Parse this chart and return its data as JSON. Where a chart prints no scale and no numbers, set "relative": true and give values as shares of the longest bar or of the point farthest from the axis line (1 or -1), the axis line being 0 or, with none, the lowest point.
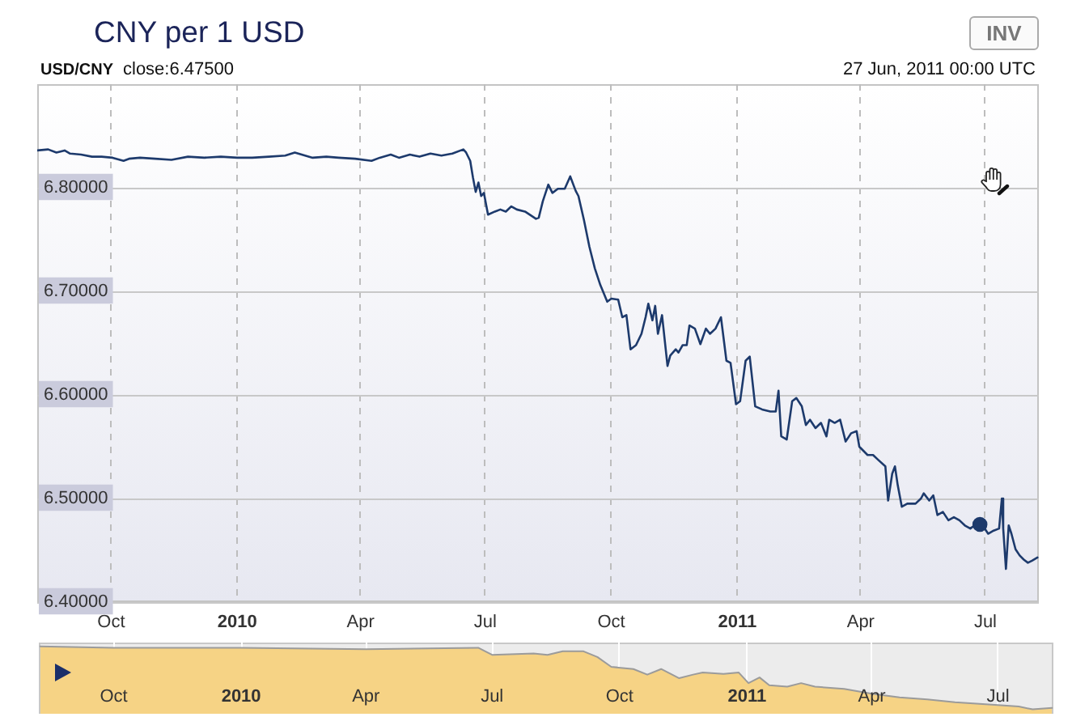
{
  "chart_data": [
    {
      "type": "line",
      "title": "CNY per 1 USD",
      "subtitle": "USD/CNY",
      "annotations": [
        "close:6.47500",
        "27 Jun, 2011 00:00 UTC",
        "INV"
      ],
      "xlim": [
        "2009-08-08",
        "2011-08-09"
      ],
      "xticks": [
        {
          "value": "2009-10-01",
          "label": "Oct"
        },
        {
          "value": "2010-01-01",
          "label": "2010"
        },
        {
          "value": "2010-04-01",
          "label": "Apr"
        },
        {
          "value": "2010-07-01",
          "label": "Jul"
        },
        {
          "value": "2010-10-01",
          "label": "Oct"
        },
        {
          "value": "2011-01-01",
          "label": "2011"
        },
        {
          "value": "2011-04-01",
          "label": "Apr"
        },
        {
          "value": "2011-07-01",
          "label": "Jul"
        }
      ],
      "ylim": [
        6.4,
        6.9
      ],
      "yticks": [
        {
          "value": 6.4,
          "label": "6.40000"
        },
        {
          "value": 6.5,
          "label": "6.50000"
        },
        {
          "value": 6.6,
          "label": "6.60000"
        },
        {
          "value": 6.7,
          "label": "6.70000"
        },
        {
          "value": 6.8,
          "label": "6.80000"
        }
      ],
      "grid": true,
      "series": [
        {
          "type": "line",
          "color": "#1d3a6c",
          "marker": "none",
          "x": [
            "2009-08-08",
            "2009-08-16",
            "2009-08-22",
            "2009-08-28",
            "2009-09-01",
            "2009-09-09",
            "2009-09-17",
            "2009-09-24",
            "2009-10-02",
            "2009-10-10",
            "2009-10-14",
            "2009-10-22",
            "2009-11-02",
            "2009-11-14",
            "2009-11-26",
            "2009-12-08",
            "2009-12-20",
            "2010-01-01",
            "2010-01-12",
            "2010-01-24",
            "2010-02-05",
            "2010-02-12",
            "2010-02-17",
            "2010-02-25",
            "2010-03-07",
            "2010-03-16",
            "2010-03-28",
            "2010-04-09",
            "2010-04-15",
            "2010-04-23",
            "2010-04-29",
            "2010-05-07",
            "2010-05-14",
            "2010-05-22",
            "2010-05-30",
            "2010-06-07",
            "2010-06-15",
            "2010-06-17",
            "2010-06-20",
            "2010-06-22",
            "2010-06-24",
            "2010-06-26",
            "2010-06-28",
            "2010-06-30",
            "2010-07-03",
            "2010-07-08",
            "2010-07-12",
            "2010-07-16",
            "2010-07-20",
            "2010-07-24",
            "2010-07-30",
            "2010-08-07",
            "2010-08-09",
            "2010-08-12",
            "2010-08-16",
            "2010-08-19",
            "2010-08-23",
            "2010-08-28",
            "2010-09-01",
            "2010-09-05",
            "2010-09-07",
            "2010-09-11",
            "2010-09-15",
            "2010-09-19",
            "2010-09-23",
            "2010-09-28",
            "2010-10-01",
            "2010-10-06",
            "2010-10-09",
            "2010-10-12",
            "2010-10-15",
            "2010-10-19",
            "2010-10-23",
            "2010-10-26",
            "2010-10-28",
            "2010-10-31",
            "2010-11-02",
            "2010-11-04",
            "2010-11-07",
            "2010-11-11",
            "2010-11-13",
            "2010-11-17",
            "2010-11-19",
            "2010-11-22",
            "2010-11-25",
            "2010-11-27",
            "2010-12-01",
            "2010-12-05",
            "2010-12-09",
            "2010-12-12",
            "2010-12-16",
            "2010-12-20",
            "2010-12-24",
            "2010-12-27",
            "2010-12-31",
            "2011-01-03",
            "2011-01-07",
            "2011-01-10",
            "2011-01-14",
            "2011-01-19",
            "2011-01-25",
            "2011-01-29",
            "2011-01-31",
            "2011-02-02",
            "2011-02-06",
            "2011-02-10",
            "2011-02-13",
            "2011-02-17",
            "2011-02-20",
            "2011-02-23",
            "2011-02-27",
            "2011-03-03",
            "2011-03-07",
            "2011-03-09",
            "2011-03-13",
            "2011-03-17",
            "2011-03-21",
            "2011-03-25",
            "2011-03-29",
            "2011-03-31",
            "2011-04-06",
            "2011-04-10",
            "2011-04-14",
            "2011-04-19",
            "2011-04-21",
            "2011-04-24",
            "2011-04-26",
            "2011-04-28",
            "2011-05-01",
            "2011-05-05",
            "2011-05-11",
            "2011-05-15",
            "2011-05-17",
            "2011-05-21",
            "2011-05-24",
            "2011-05-27",
            "2011-05-31",
            "2011-06-04",
            "2011-06-08",
            "2011-06-12",
            "2011-06-16",
            "2011-06-20",
            "2011-06-23",
            "2011-06-27",
            "2011-06-29",
            "2011-07-03",
            "2011-07-07",
            "2011-07-11",
            "2011-07-13",
            "2011-07-14",
            "2011-07-16",
            "2011-07-18",
            "2011-07-20",
            "2011-07-23",
            "2011-07-26",
            "2011-07-29",
            "2011-08-01",
            "2011-08-04",
            "2011-08-08"
          ],
          "values": [
            6.836,
            6.837,
            6.834,
            6.836,
            6.833,
            6.832,
            6.83,
            6.83,
            6.829,
            6.826,
            6.828,
            6.829,
            6.828,
            6.827,
            6.83,
            6.829,
            6.83,
            6.829,
            6.829,
            6.83,
            6.831,
            6.834,
            6.832,
            6.829,
            6.83,
            6.829,
            6.828,
            6.826,
            6.829,
            6.832,
            6.829,
            6.832,
            6.83,
            6.833,
            6.831,
            6.833,
            6.837,
            6.834,
            6.826,
            6.81,
            6.796,
            6.805,
            6.792,
            6.795,
            6.774,
            6.777,
            6.779,
            6.777,
            6.782,
            6.779,
            6.777,
            6.77,
            6.771,
            6.787,
            6.803,
            6.795,
            6.799,
            6.799,
            6.811,
            6.797,
            6.792,
            6.769,
            6.743,
            6.722,
            6.706,
            6.69,
            6.693,
            6.692,
            6.675,
            6.677,
            6.644,
            6.648,
            6.659,
            6.675,
            6.688,
            6.672,
            6.686,
            6.659,
            6.677,
            6.628,
            6.638,
            6.644,
            6.641,
            6.648,
            6.648,
            6.667,
            6.664,
            6.649,
            6.664,
            6.659,
            6.664,
            6.675,
            6.633,
            6.631,
            6.591,
            6.594,
            6.633,
            6.637,
            6.589,
            6.586,
            6.584,
            6.584,
            6.604,
            6.56,
            6.557,
            6.594,
            6.597,
            6.589,
            6.571,
            6.576,
            6.568,
            6.573,
            6.56,
            6.576,
            6.573,
            6.576,
            6.555,
            6.563,
            6.565,
            6.55,
            6.542,
            6.542,
            6.537,
            6.531,
            6.498,
            6.524,
            6.531,
            6.513,
            6.492,
            6.495,
            6.495,
            6.5,
            6.505,
            6.498,
            6.503,
            6.484,
            6.487,
            6.479,
            6.482,
            6.479,
            6.474,
            6.471,
            6.474,
            6.475,
            6.474,
            6.466,
            6.469,
            6.471,
            6.5,
            6.471,
            6.432,
            6.474,
            6.466,
            6.451,
            6.445,
            6.441,
            6.438,
            6.44,
            6.443
          ]
        },
        {
          "type": "scatter",
          "color": "#1d3a6c",
          "marker": "circle",
          "x": [
            "2011-06-27"
          ],
          "values": [
            6.475
          ]
        }
      ]
    },
    {
      "type": "area",
      "relative": true,
      "color": "#f6d385",
      "grid": "x",
      "xlim": [
        "2009-08-08",
        "2011-08-10"
      ],
      "xticks": [
        {
          "value": "2009-10-01",
          "label": "Oct"
        },
        {
          "value": "2010-01-01",
          "label": "2010"
        },
        {
          "value": "2010-04-01",
          "label": "Apr"
        },
        {
          "value": "2010-07-01",
          "label": "Jul"
        },
        {
          "value": "2010-10-01",
          "label": "Oct"
        },
        {
          "value": "2011-01-01",
          "label": "2011"
        },
        {
          "value": "2011-04-01",
          "label": "Apr"
        },
        {
          "value": "2011-07-01",
          "label": "Jul"
        }
      ],
      "x": [
        "2009-08-09",
        "2009-10-01",
        "2010-01-01",
        "2010-04-01",
        "2010-06-21",
        "2010-07-01",
        "2010-07-31",
        "2010-08-10",
        "2010-08-21",
        "2010-09-05",
        "2010-09-15",
        "2010-09-25",
        "2010-10-11",
        "2010-10-21",
        "2010-10-31",
        "2010-11-13",
        "2010-11-23",
        "2010-11-30",
        "2010-12-15",
        "2010-12-26",
        "2011-01-02",
        "2011-01-10",
        "2011-01-17",
        "2011-01-30",
        "2011-02-09",
        "2011-02-19",
        "2011-03-12",
        "2011-04-01",
        "2011-04-21",
        "2011-05-11",
        "2011-05-31",
        "2011-07-01",
        "2011-07-16",
        "2011-07-26",
        "2011-08-09"
      ],
      "values": [
        1.0,
        0.978,
        0.978,
        0.955,
        0.978,
        0.865,
        0.888,
        0.865,
        0.921,
        0.921,
        0.831,
        0.674,
        0.64,
        0.551,
        0.64,
        0.494,
        0.551,
        0.584,
        0.562,
        0.584,
        0.416,
        0.506,
        0.382,
        0.36,
        0.416,
        0.36,
        0.326,
        0.247,
        0.191,
        0.157,
        0.112,
        0.067,
        0.045,
        0.0,
        0.022
      ]
    }
  ]
}
